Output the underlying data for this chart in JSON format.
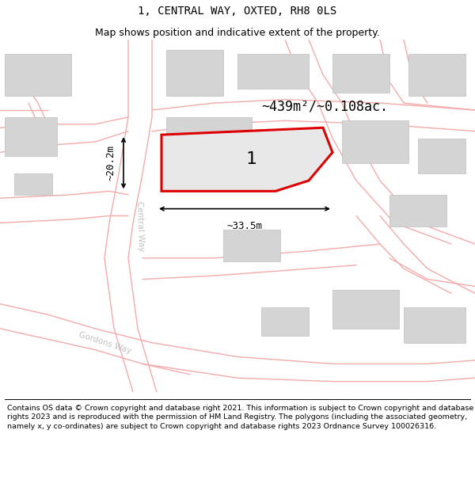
{
  "title": "1, CENTRAL WAY, OXTED, RH8 0LS",
  "subtitle": "Map shows position and indicative extent of the property.",
  "footer": "Contains OS data © Crown copyright and database right 2021. This information is subject to Crown copyright and database rights 2023 and is reproduced with the permission of HM Land Registry. The polygons (including the associated geometry, namely x, y co-ordinates) are subject to Crown copyright and database rights 2023 Ordnance Survey 100026316.",
  "area_label": "~439m²/~0.108ac.",
  "width_label": "~33.5m",
  "height_label": "~20.2m",
  "plot_number": "1",
  "map_bg": "#f2f2f2",
  "road_color": "#f5aaaa",
  "building_color": "#d4d4d4",
  "building_edge": "#c0c0c0",
  "property_color": "#dd0000",
  "property_fill": "#e8e8e8",
  "road_label_color": "#c0c0c0",
  "title_fontsize": 10,
  "subtitle_fontsize": 9,
  "footer_fontsize": 6.8,
  "road_lw": 1.0,
  "property_lw": 2.2
}
